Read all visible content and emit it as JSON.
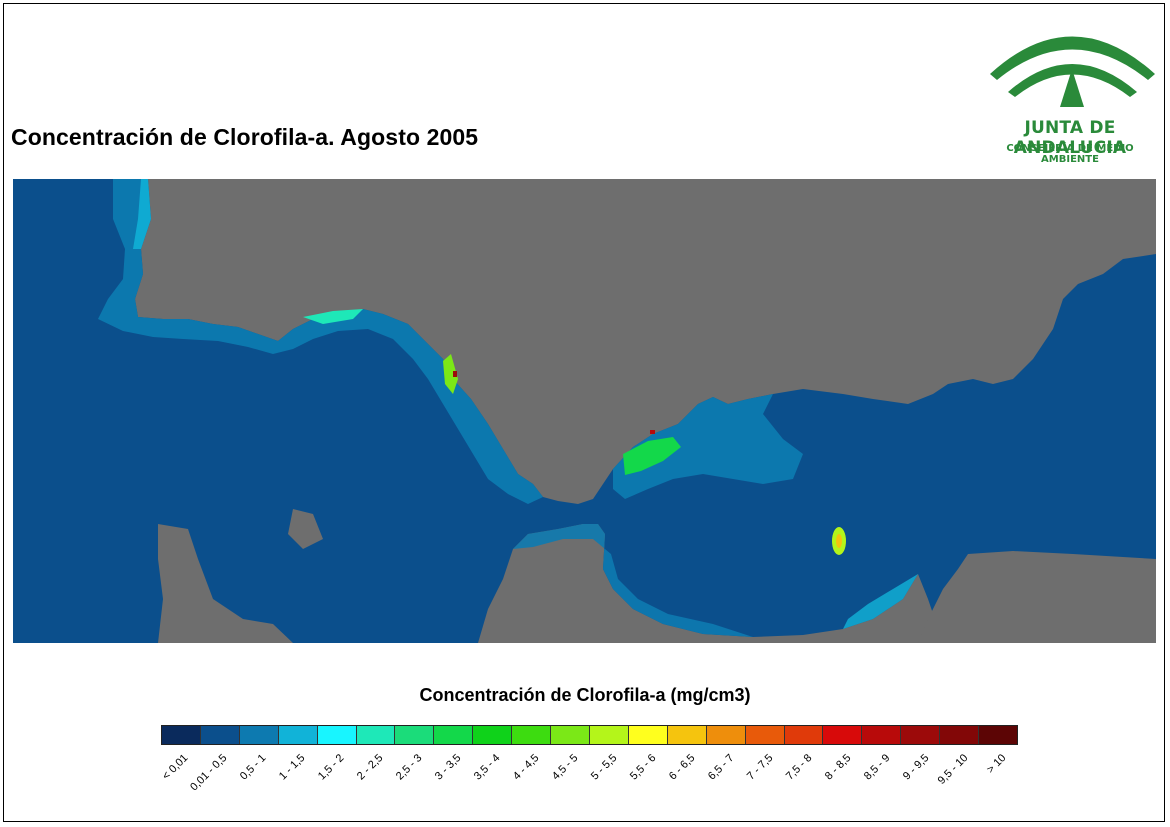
{
  "title": "Concentración de Clorofila-a. Agosto 2005",
  "logo": {
    "name": "JUNTA DE ANDALUCIA",
    "subtitle": "CONSEJERÍA DE MEDIO AMBIENTE",
    "color": "#2a8a3a"
  },
  "map": {
    "land_color": "#6e6e6e",
    "ocean_color": "#0b4f8c"
  },
  "legend": {
    "title": "Concentración de Clorofila-a (mg/cm3)",
    "classes": [
      {
        "label": "< 0,01",
        "color": "#0a2a5c"
      },
      {
        "label": "0,01 - 0,5",
        "color": "#0b4f8c"
      },
      {
        "label": "0,5 - 1",
        "color": "#0d7ab0"
      },
      {
        "label": "1 - 1,5",
        "color": "#11b3d8"
      },
      {
        "label": "1,5 - 2",
        "color": "#18f5ff"
      },
      {
        "label": "2 - 2,5",
        "color": "#1ee8b8"
      },
      {
        "label": "2,5 - 3",
        "color": "#1bdc7a"
      },
      {
        "label": "3 - 3,5",
        "color": "#13d84a"
      },
      {
        "label": "3,5 - 4",
        "color": "#0fd21a"
      },
      {
        "label": "4 - 4,5",
        "color": "#3ddc10"
      },
      {
        "label": "4,5 - 5",
        "color": "#7be817"
      },
      {
        "label": "5 - 5,5",
        "color": "#b4f51a"
      },
      {
        "label": "5,5 - 6",
        "color": "#ffff1e"
      },
      {
        "label": "6 - 6,5",
        "color": "#f5c40e"
      },
      {
        "label": "6,5 - 7",
        "color": "#ee8e0c"
      },
      {
        "label": "7 - 7,5",
        "color": "#e85a0a"
      },
      {
        "label": "7,5 - 8",
        "color": "#e03a0a"
      },
      {
        "label": "8 - 8,5",
        "color": "#d80a0a"
      },
      {
        "label": "8,5 - 9",
        "color": "#b80a0a"
      },
      {
        "label": "9 - 9,5",
        "color": "#9c0a0a"
      },
      {
        "label": "9,5 - 10",
        "color": "#820707"
      },
      {
        "label": "> 10",
        "color": "#5c0505"
      }
    ]
  }
}
